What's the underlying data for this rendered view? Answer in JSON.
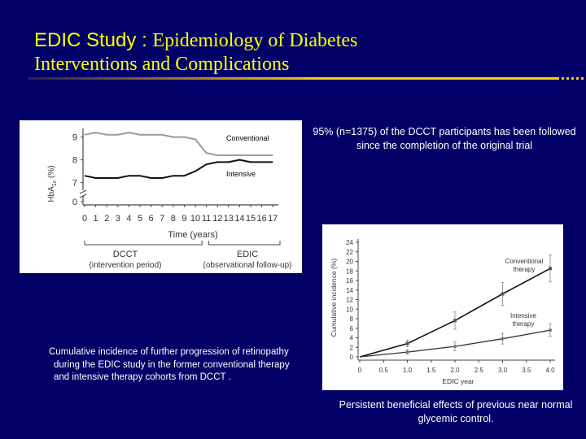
{
  "slide": {
    "title_study": "EDIC Study",
    "title_sep": ":",
    "title_rest": "Epidemiology of Diabetes",
    "title_line2": "Interventions and Complications",
    "note": "95% (n=1375) of the DCCT participants has been followed since the completion of the original trial",
    "caption_lines": [
      "Cumulative  incidence  of further progression of retinopathy",
      "during  the EDIC study in the former conventional  therapy",
      "and  intensive   therapy   cohorts from  DCCT ."
    ],
    "conclusion": "Persistent  beneficial effects of previous near normal glycemic control.",
    "colors": {
      "background": "#000066",
      "title": "#ffff00",
      "rule": "#ffcc00",
      "text": "#ffffff"
    }
  },
  "chart_data": [
    {
      "type": "line",
      "x": [
        0,
        1,
        2,
        3,
        4,
        5,
        6,
        7,
        8,
        9,
        10,
        11,
        12,
        13,
        14,
        15,
        16,
        17
      ],
      "series": [
        {
          "name": "Conventional",
          "values": [
            9.1,
            9.2,
            9.1,
            9.1,
            9.2,
            9.1,
            9.1,
            9.1,
            9.0,
            9.0,
            8.9,
            8.3,
            8.2,
            8.2,
            8.2,
            8.2,
            8.2,
            8.2
          ]
        },
        {
          "name": "Intensive",
          "values": [
            7.3,
            7.2,
            7.2,
            7.2,
            7.3,
            7.3,
            7.2,
            7.2,
            7.3,
            7.3,
            7.5,
            7.8,
            7.9,
            7.9,
            8.0,
            7.9,
            7.9,
            7.9
          ]
        }
      ],
      "ylabel_main": "HbA",
      "ylabel_sub": "1c",
      "ylabel_unit": " (%)",
      "y_ticks": [
        "9",
        "8",
        "7",
        "0"
      ],
      "xlabel": "Time (years)",
      "x_ticks": [
        "0",
        "1",
        "2",
        "3",
        "4",
        "5",
        "6",
        "7",
        "8",
        "9",
        "10",
        "11",
        "12",
        "13",
        "14",
        "15",
        "16",
        "17"
      ],
      "periods": [
        {
          "name": "DCCT",
          "note": "(intervention period)"
        },
        {
          "name": "EDIC",
          "note": "(observational follow-up)"
        }
      ],
      "ylim": [
        6.5,
        9.5
      ],
      "axis_break": true,
      "grid": false
    },
    {
      "type": "line",
      "x": [
        0,
        1,
        2,
        3,
        4
      ],
      "series": [
        {
          "name": "Conventional therapy",
          "values": [
            0,
            2.8,
            7.6,
            13.2,
            18.5
          ]
        },
        {
          "name": "Intensive therapy",
          "values": [
            0,
            1.0,
            2.2,
            3.8,
            5.6
          ]
        }
      ],
      "ylabel": "Cumulative incidence (%)",
      "xlabel": "EDIC year",
      "y_ticks": [
        "0",
        "2",
        "4",
        "6",
        "8",
        "10",
        "12",
        "14",
        "16",
        "18",
        "20",
        "22",
        "24"
      ],
      "x_ticks": [
        "0",
        "0.5",
        "1.0",
        "1.5",
        "2.0",
        "2.5",
        "3.0",
        "3.5",
        "4.0"
      ],
      "xlim": [
        0,
        4
      ],
      "ylim": [
        0,
        24
      ],
      "grid": false
    }
  ]
}
